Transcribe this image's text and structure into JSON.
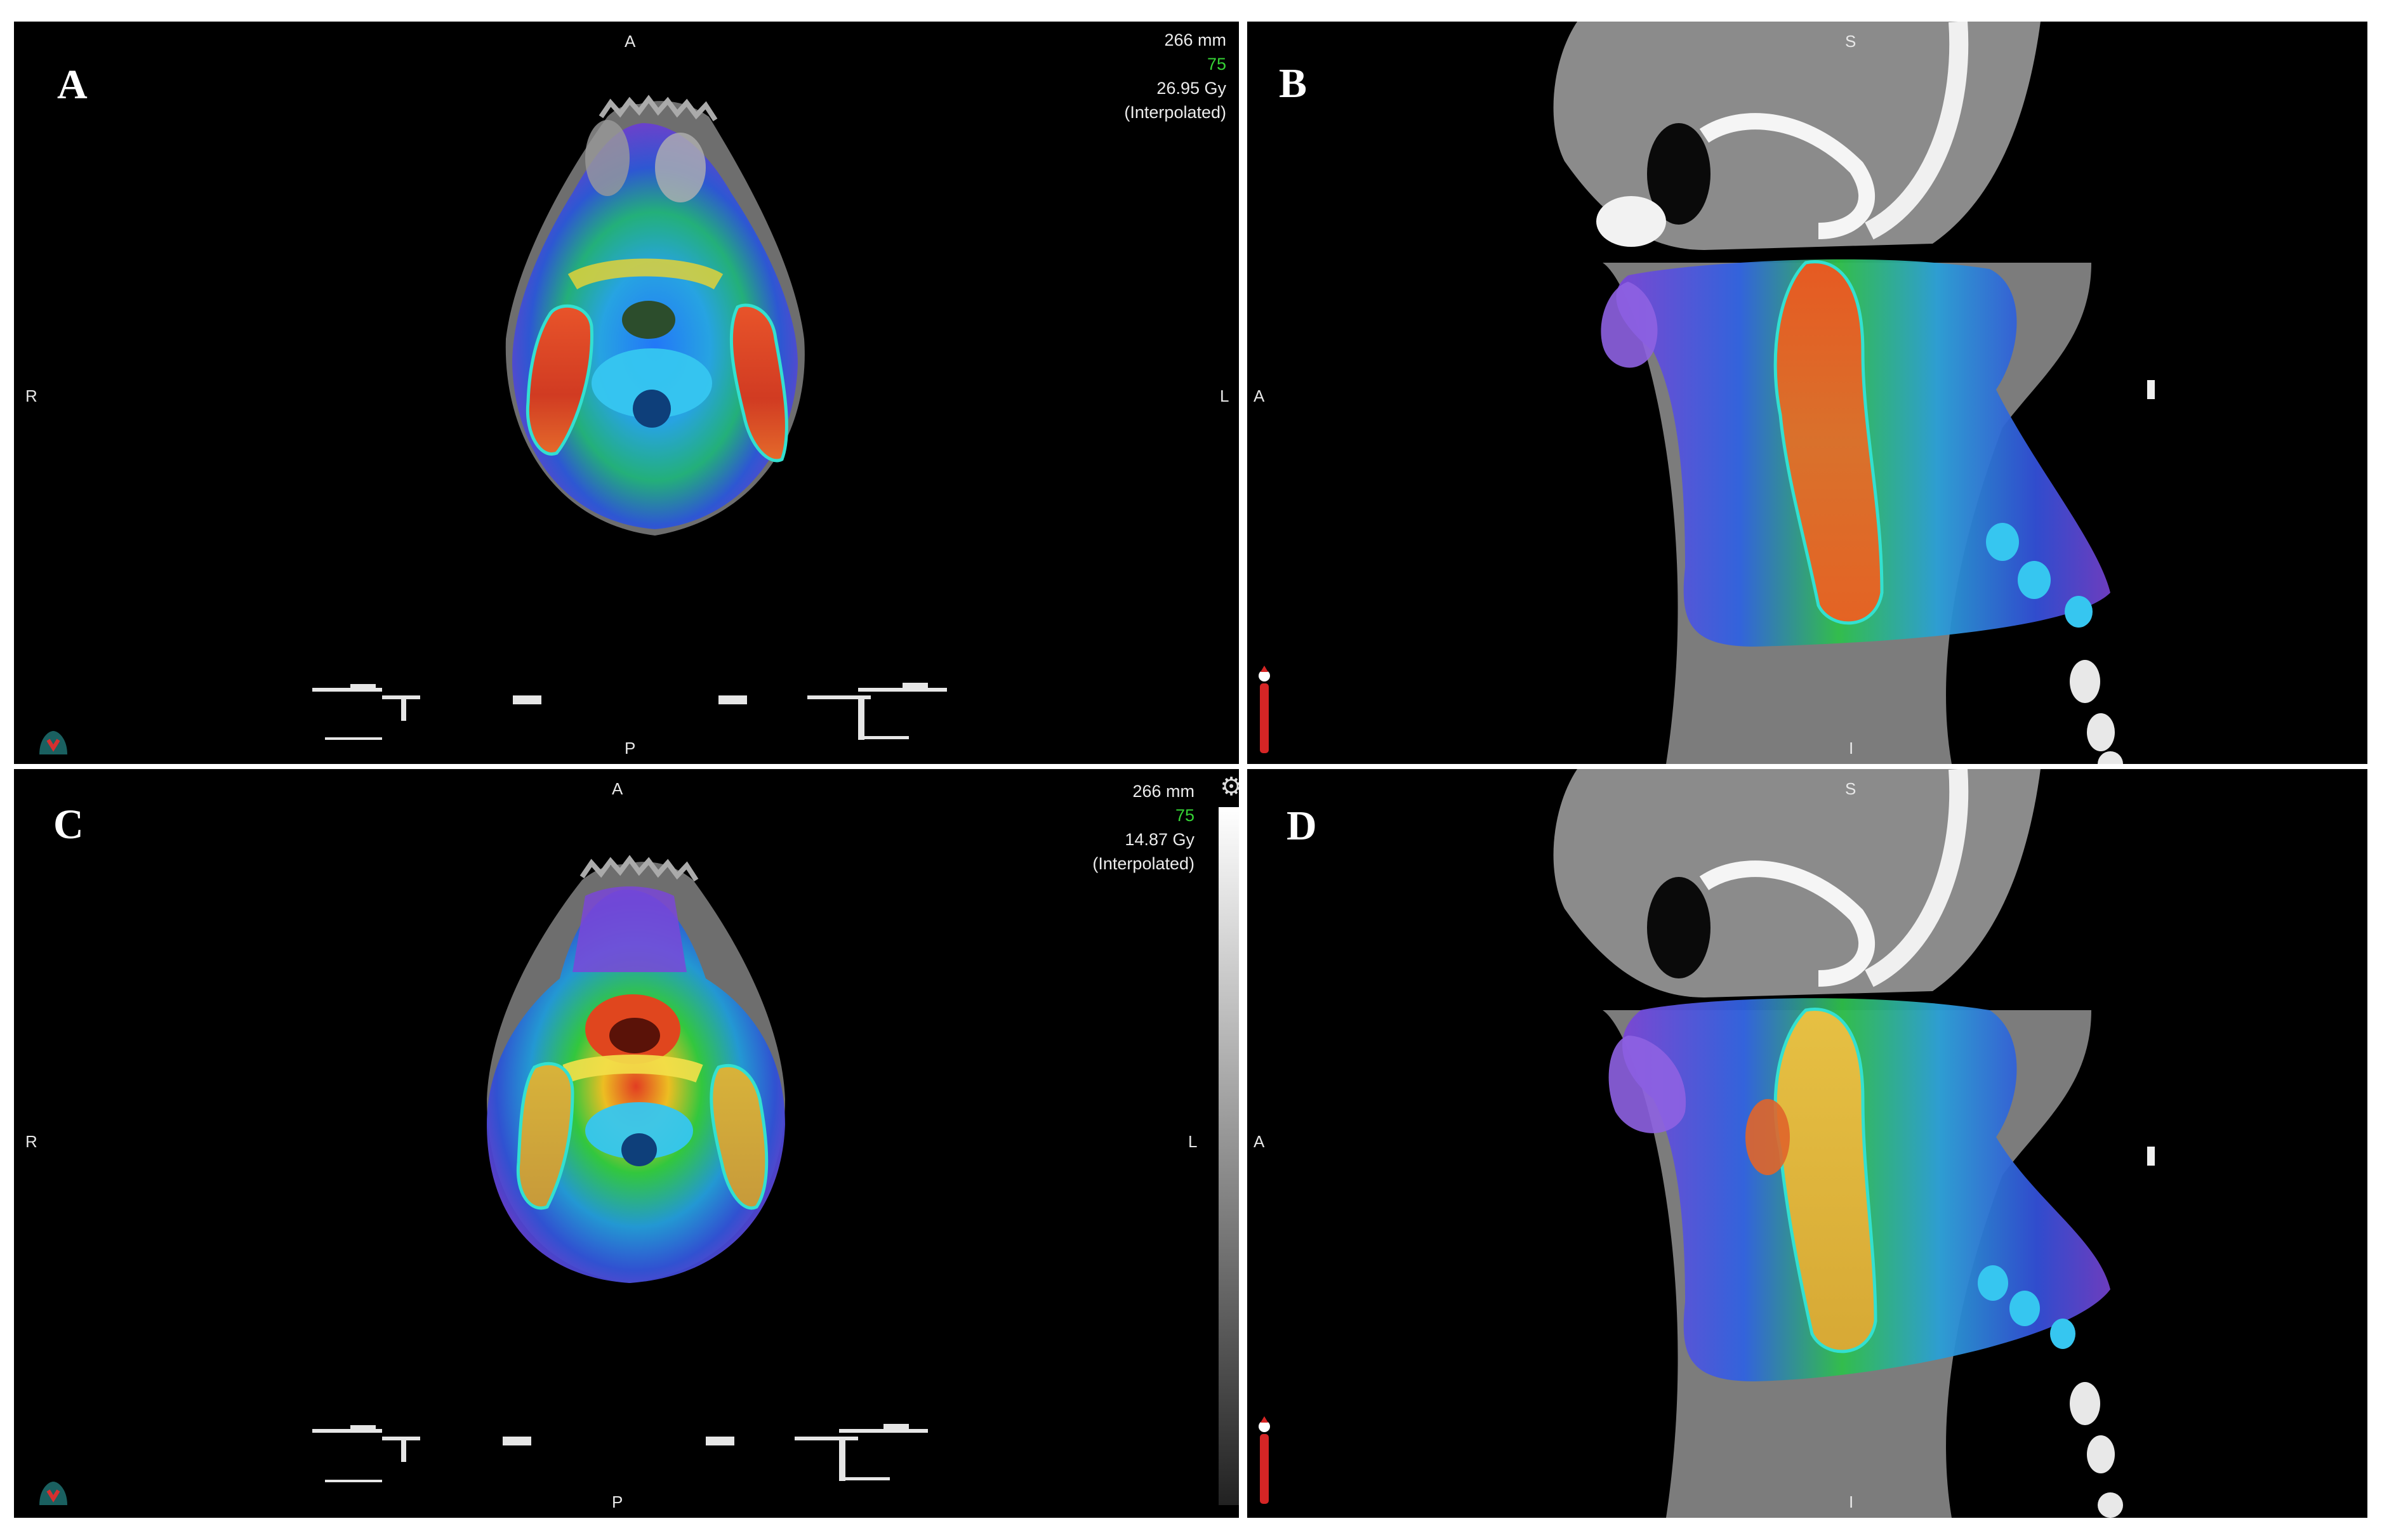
{
  "panels": {
    "a": {
      "letter": "A",
      "top": "A",
      "bottom": "P",
      "left": "R",
      "right": "L",
      "depth": "266 mm",
      "slice": "75",
      "dose": "26.95 Gy",
      "mode": "(Interpolated)"
    },
    "b": {
      "letter": "B",
      "top": "S",
      "bottom": "I",
      "left": "A"
    },
    "c": {
      "letter": "C",
      "top": "A",
      "bottom": "P",
      "left": "R",
      "right": "L",
      "depth": "266 mm",
      "slice": "75",
      "dose": "14.87 Gy",
      "mode": "(Interpolated)"
    },
    "d": {
      "letter": "D",
      "top": "S",
      "bottom": "I",
      "left": "A"
    }
  },
  "icons": {
    "settings": "gear-icon",
    "orientation_axial": "head-orientation-icon",
    "orientation_sagittal": "body-mannequin-icon"
  },
  "colors": {
    "viewport_bg": "#000000",
    "slice_number": "#35d335",
    "contour": "#33e0d0"
  }
}
